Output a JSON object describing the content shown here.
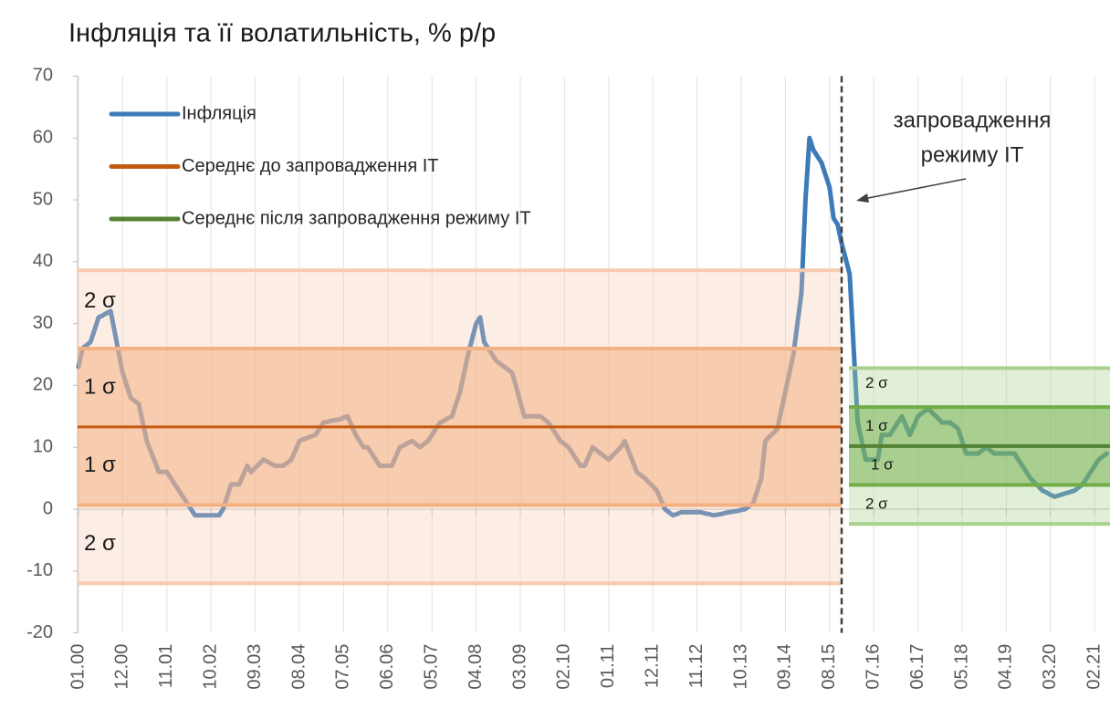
{
  "chart_data": {
    "type": "line",
    "title": "Інфляція та її волатильність, % р/р",
    "ylim": [
      -20,
      70
    ],
    "yticks": [
      -20,
      -10,
      0,
      10,
      20,
      30,
      40,
      50,
      60,
      70
    ],
    "grid": true,
    "legend": "top-left",
    "categories": [
      "01.00",
      null,
      null,
      null,
      null,
      null,
      null,
      null,
      null,
      null,
      null,
      "12.00",
      null,
      null,
      null,
      null,
      null,
      null,
      null,
      null,
      null,
      null,
      "11.01",
      null,
      null,
      null,
      null,
      null,
      null,
      null,
      null,
      null,
      null,
      "10.02",
      null,
      null,
      null,
      null,
      null,
      null,
      null,
      null,
      null,
      null,
      "09.03",
      null,
      null,
      null,
      null,
      null,
      null,
      null,
      null,
      null,
      null,
      "08.04",
      null,
      null,
      null,
      null,
      null,
      null,
      null,
      null,
      null,
      null,
      "07.05",
      null,
      null,
      null,
      null,
      null,
      null,
      null,
      null,
      null,
      null,
      "06.06",
      null,
      null,
      null,
      null,
      null,
      null,
      null,
      null,
      null,
      null,
      "05.07",
      null,
      null,
      null,
      null,
      null,
      null,
      null,
      null,
      null,
      null,
      "04.08",
      null,
      null,
      null,
      null,
      null,
      null,
      null,
      null,
      null,
      null,
      "03.09",
      null,
      null,
      null,
      null,
      null,
      null,
      null,
      null,
      null,
      null,
      "02.10",
      null,
      null,
      null,
      null,
      null,
      null,
      null,
      null,
      null,
      null,
      "01.11",
      null,
      null,
      null,
      null,
      null,
      null,
      null,
      null,
      null,
      null,
      "12.11",
      null,
      null,
      null,
      null,
      null,
      null,
      null,
      null,
      null,
      null,
      "11.12",
      null,
      null,
      null,
      null,
      null,
      null,
      null,
      null,
      null,
      null,
      "10.13",
      null,
      null,
      null,
      null,
      null,
      null,
      null,
      null,
      null,
      null,
      "09.14",
      null,
      null,
      null,
      null,
      null,
      null,
      null,
      null,
      null,
      null,
      "08.15",
      null,
      null,
      null,
      null,
      null,
      null,
      null,
      null,
      null,
      null,
      "07.16",
      null,
      null,
      null,
      null,
      null,
      null,
      null,
      null,
      null,
      null,
      "06.17",
      null,
      null,
      null,
      null,
      null,
      null,
      null,
      null,
      null,
      null,
      "05.18",
      null,
      null,
      null,
      null,
      null,
      null,
      null,
      null,
      null,
      null,
      "04.19",
      null,
      null,
      null,
      null,
      null,
      null,
      null,
      null,
      null,
      null,
      "03.20",
      null,
      null,
      null,
      null,
      null,
      null,
      null,
      null,
      null,
      null,
      "02.21",
      null,
      null,
      null
    ],
    "series": [
      {
        "name": "Інфляція",
        "color": "#3d7ab8",
        "values": [
          23,
          26,
          26.5,
          27,
          29,
          31,
          31.3,
          31.7,
          32,
          28.7,
          25.3,
          22,
          20,
          18,
          17.5,
          17,
          14,
          11,
          9.3,
          7.7,
          6,
          6,
          6,
          5,
          4,
          3,
          2,
          1,
          0,
          -1,
          -1,
          -1,
          -1,
          -1,
          -1,
          -1,
          0,
          2,
          4,
          4,
          4,
          5.5,
          7,
          6,
          6.7,
          7.3,
          8,
          7.7,
          7.3,
          7,
          7,
          7,
          7.5,
          8,
          9.5,
          11,
          11.3,
          11.5,
          11.8,
          12,
          13,
          14,
          14.1,
          14.3,
          14.4,
          14.5,
          14.8,
          15,
          13.5,
          12,
          11,
          10,
          10,
          9,
          8,
          7,
          7,
          7,
          7,
          8.5,
          10,
          10.3,
          10.7,
          11,
          10.5,
          10,
          10.5,
          11,
          12,
          13,
          14,
          14.3,
          14.7,
          15,
          17,
          19,
          22,
          25,
          27.5,
          30,
          31,
          27,
          26,
          25,
          24,
          23.5,
          23,
          22.5,
          22,
          19.7,
          17.3,
          15,
          15,
          15,
          15,
          15,
          14.5,
          14,
          13,
          12,
          11,
          10.5,
          10,
          9,
          8,
          7,
          7,
          8.5,
          10,
          9.5,
          9,
          8.5,
          8,
          8.7,
          9.3,
          10,
          11,
          9.3,
          7.7,
          6,
          5.5,
          5,
          4.3,
          3.7,
          3,
          1.5,
          0,
          -0.5,
          -1,
          -0.8,
          -0.5,
          -0.5,
          -0.5,
          -0.5,
          -0.5,
          -0.5,
          -0.7,
          -0.8,
          -1,
          -0.9,
          -0.8,
          -0.6,
          -0.5,
          -0.4,
          -0.3,
          -0.1,
          0,
          0.5,
          1,
          3,
          5,
          11,
          11.7,
          12.3,
          13,
          16,
          19,
          22,
          25,
          30,
          35,
          50,
          60,
          58,
          57,
          56,
          54,
          52,
          47,
          46,
          43,
          40.5,
          38,
          26,
          14,
          11,
          8,
          8,
          8,
          8,
          12,
          12,
          12,
          13,
          14,
          15,
          13.5,
          12,
          13.5,
          15,
          15.5,
          16,
          16,
          15.3,
          14.7,
          14,
          14,
          14,
          13.5,
          13,
          11,
          9,
          9,
          9,
          9,
          9.5,
          10,
          9.5,
          9,
          9,
          9,
          9,
          9,
          9,
          8,
          7,
          6,
          5,
          4.3,
          3.7,
          3,
          2.7,
          2.3,
          2,
          2.2,
          2.4,
          2.6,
          2.8,
          3,
          3.5,
          4,
          5,
          6,
          7,
          8,
          8.5,
          9
        ]
      }
    ],
    "periods": [
      {
        "name": "Середнє до запровадження ІТ",
        "color": "#c55a11",
        "band_color": "#f4b183",
        "outer_color": "#f8cbad",
        "from": 0,
        "to": 190,
        "mean": 13.3,
        "sigma": 12.65,
        "band_labels": [
          "2 σ",
          "1 σ",
          "1 σ",
          "2 σ"
        ]
      },
      {
        "name": "Середнє після запровадження режиму ІТ",
        "color": "#548235",
        "band_color": "#70ad47",
        "outer_color": "#a9d18e",
        "from": 190,
        "to": 256,
        "mean": 10.2,
        "sigma": 6.3,
        "band_labels": [
          "2 σ",
          "1 σ",
          "1 σ",
          "2 σ"
        ]
      }
    ],
    "annotation": [
      "запровадження",
      "режиму ІТ"
    ]
  }
}
